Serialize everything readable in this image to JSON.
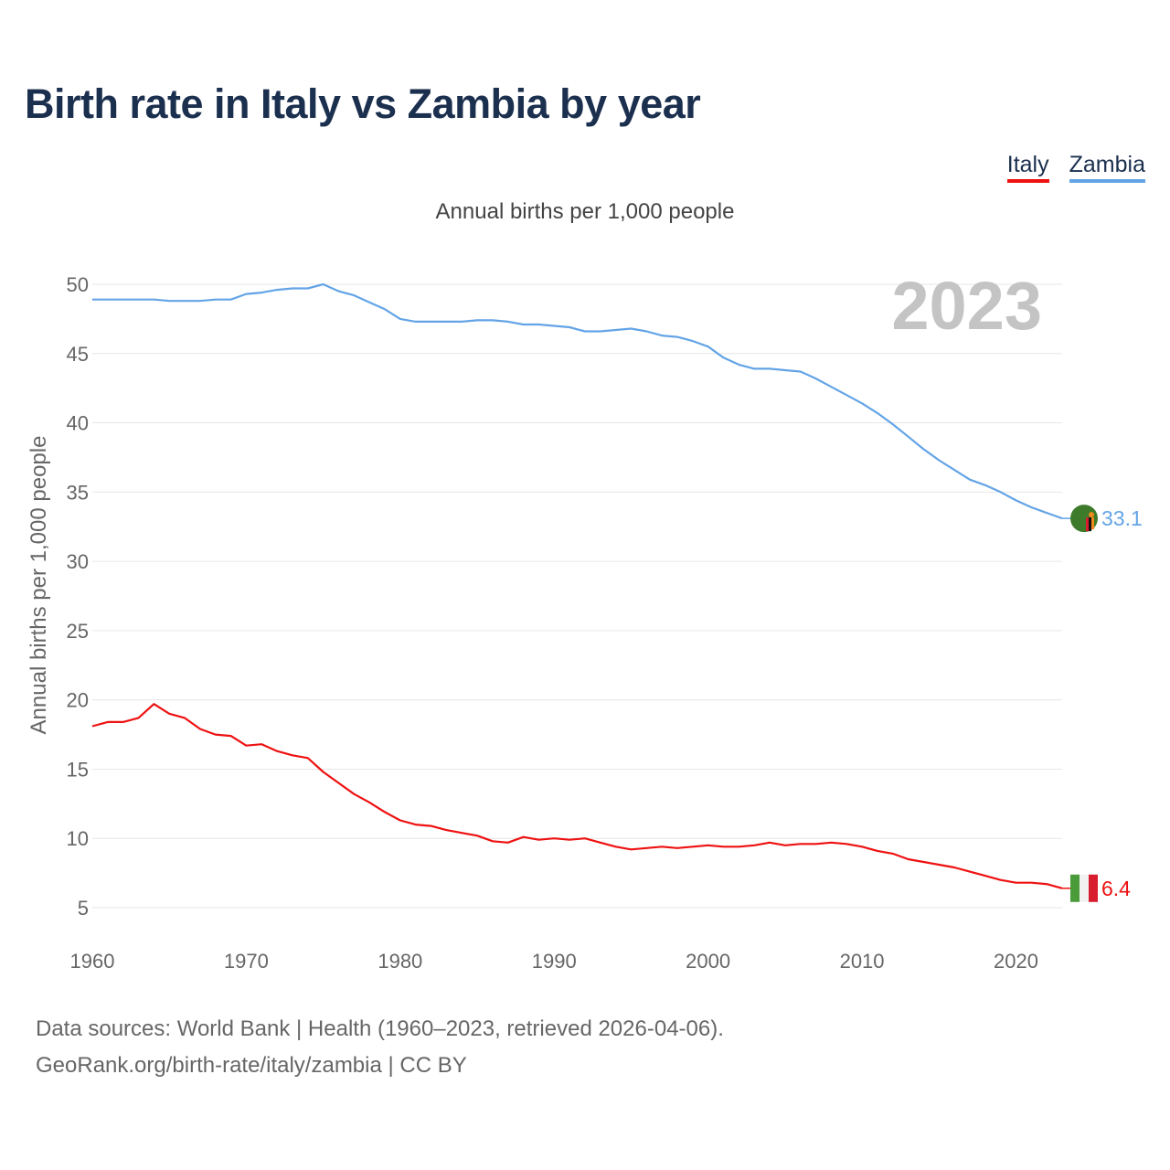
{
  "title": "Birth rate in Italy vs Zambia by year",
  "subtitle": "Annual births per 1,000 people",
  "legend": [
    {
      "name": "Italy",
      "color": "#ee1111"
    },
    {
      "name": "Zambia",
      "color": "#63a4e6"
    }
  ],
  "year_label": "2023",
  "source_line1": "Data sources: World Bank | Health (1960–2023, retrieved 2026-04-06).",
  "source_line2": "GeoRank.org/birth-rate/italy/zambia | CC BY",
  "chart_data": {
    "type": "line",
    "title": "Birth rate in Italy vs Zambia by year",
    "xlabel": "",
    "ylabel": "Annual births per 1,000 people",
    "xlim": [
      1960,
      2023
    ],
    "ylim": [
      3.5,
      51
    ],
    "yticks": [
      5,
      10,
      15,
      20,
      25,
      30,
      35,
      40,
      45,
      50
    ],
    "xticks": [
      1960,
      1970,
      1980,
      1990,
      2000,
      2010,
      2020
    ],
    "grid": true,
    "x": [
      1960,
      1961,
      1962,
      1963,
      1964,
      1965,
      1966,
      1967,
      1968,
      1969,
      1970,
      1971,
      1972,
      1973,
      1974,
      1975,
      1976,
      1977,
      1978,
      1979,
      1980,
      1981,
      1982,
      1983,
      1984,
      1985,
      1986,
      1987,
      1988,
      1989,
      1990,
      1991,
      1992,
      1993,
      1994,
      1995,
      1996,
      1997,
      1998,
      1999,
      2000,
      2001,
      2002,
      2003,
      2004,
      2005,
      2006,
      2007,
      2008,
      2009,
      2010,
      2011,
      2012,
      2013,
      2014,
      2015,
      2016,
      2017,
      2018,
      2019,
      2020,
      2021,
      2022,
      2023
    ],
    "series": [
      {
        "name": "Italy",
        "color": "#ee1111",
        "end_label": "6.4",
        "values": [
          18.1,
          18.4,
          18.4,
          18.7,
          19.7,
          19.0,
          18.7,
          17.9,
          17.5,
          17.4,
          16.7,
          16.8,
          16.3,
          16.0,
          15.8,
          14.8,
          14.0,
          13.2,
          12.6,
          11.9,
          11.3,
          11.0,
          10.9,
          10.6,
          10.4,
          10.2,
          9.8,
          9.7,
          10.1,
          9.9,
          10.0,
          9.9,
          10.0,
          9.7,
          9.4,
          9.2,
          9.3,
          9.4,
          9.3,
          9.4,
          9.5,
          9.4,
          9.4,
          9.5,
          9.7,
          9.5,
          9.6,
          9.6,
          9.7,
          9.6,
          9.4,
          9.1,
          8.9,
          8.5,
          8.3,
          8.1,
          7.9,
          7.6,
          7.3,
          7.0,
          6.8,
          6.8,
          6.7,
          6.4
        ]
      },
      {
        "name": "Zambia",
        "color": "#63a4e6",
        "end_label": "33.1",
        "values": [
          48.9,
          48.9,
          48.9,
          48.9,
          48.9,
          48.8,
          48.8,
          48.8,
          48.9,
          48.9,
          49.3,
          49.4,
          49.6,
          49.7,
          49.7,
          50.0,
          49.5,
          49.2,
          48.7,
          48.2,
          47.5,
          47.3,
          47.3,
          47.3,
          47.3,
          47.4,
          47.4,
          47.3,
          47.1,
          47.1,
          47.0,
          46.9,
          46.6,
          46.6,
          46.7,
          46.8,
          46.6,
          46.3,
          46.2,
          45.9,
          45.5,
          44.7,
          44.2,
          43.9,
          43.9,
          43.8,
          43.7,
          43.2,
          42.6,
          42.0,
          41.4,
          40.7,
          39.9,
          39.0,
          38.1,
          37.3,
          36.6,
          35.9,
          35.5,
          35.0,
          34.4,
          33.9,
          33.5,
          33.1
        ]
      }
    ]
  }
}
